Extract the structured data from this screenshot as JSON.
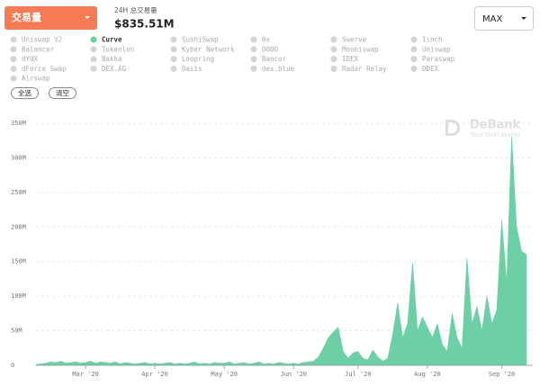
{
  "header": {
    "metric": "交易量",
    "summary_label": "24H 总交易量",
    "summary_value": "$835.51M",
    "range": "MAX"
  },
  "filters": [
    {
      "name": "Uniswap V2",
      "color": "#d4d4d4"
    },
    {
      "name": "Curve",
      "color": "#6ccfa5"
    },
    {
      "name": "SushiSwap",
      "color": "#d4d4d4"
    },
    {
      "name": "0x",
      "color": "#d4d4d4"
    },
    {
      "name": "Swerve",
      "color": "#d4d4d4"
    },
    {
      "name": "1inch",
      "color": "#d4d4d4"
    },
    {
      "name": "Balancer",
      "color": "#d4d4d4"
    },
    {
      "name": "Tokenlon",
      "color": "#d4d4d4"
    },
    {
      "name": "Kyber Network",
      "color": "#d4d4d4"
    },
    {
      "name": "DODO",
      "color": "#d4d4d4"
    },
    {
      "name": "Mooniswap",
      "color": "#d4d4d4"
    },
    {
      "name": "Uniswap",
      "color": "#d4d4d4"
    },
    {
      "name": "dYdX",
      "color": "#d4d4d4"
    },
    {
      "name": "Bakka",
      "color": "#d4d4d4"
    },
    {
      "name": "Loopring",
      "color": "#d4d4d4"
    },
    {
      "name": "Bancor",
      "color": "#d4d4d4"
    },
    {
      "name": "IDEX",
      "color": "#d4d4d4"
    },
    {
      "name": "Paraswap",
      "color": "#d4d4d4"
    },
    {
      "name": "dForce Swap",
      "color": "#d4d4d4"
    },
    {
      "name": "DEX.AG",
      "color": "#d4d4d4"
    },
    {
      "name": "Oasis",
      "color": "#d4d4d4"
    },
    {
      "name": "dex.blue",
      "color": "#d4d4d4"
    },
    {
      "name": "Radar Relay",
      "color": "#d4d4d4"
    },
    {
      "name": "DDEX",
      "color": "#d4d4d4"
    },
    {
      "name": "Airswap",
      "color": "#d4d4d4"
    }
  ],
  "buttons": [
    "全选",
    "清空"
  ],
  "watermark": {
    "brand": "DeBank",
    "tagline": "Your DeFi Wallet"
  },
  "chart_data": {
    "type": "area",
    "color": "#6ccfa5",
    "grid": true,
    "categories": [
      null,
      null,
      null,
      null,
      null,
      null,
      null,
      null,
      null,
      null,
      "Mar '20",
      null,
      null,
      null,
      null,
      null,
      null,
      null,
      null,
      null,
      null,
      null,
      null,
      null,
      "Apr '20",
      null,
      null,
      null,
      null,
      null,
      null,
      null,
      null,
      null,
      null,
      null,
      null,
      null,
      "May '20",
      null,
      null,
      null,
      null,
      null,
      null,
      null,
      null,
      null,
      null,
      null,
      null,
      null,
      "Jun '20",
      null,
      null,
      null,
      null,
      null,
      null,
      null,
      null,
      null,
      null,
      null,
      null,
      "Jul '20",
      null,
      null,
      null,
      null,
      null,
      null,
      null,
      null,
      null,
      null,
      null,
      null,
      null,
      "Aug '20",
      null,
      null,
      null,
      null,
      null,
      null,
      null,
      null,
      null,
      null,
      null,
      null,
      null,
      null,
      "Sep '20",
      null,
      null,
      null,
      null,
      null
    ],
    "values": [
      1,
      2,
      3,
      5,
      4,
      6,
      3,
      4,
      5,
      3,
      4,
      6,
      3,
      5,
      4,
      3,
      5,
      2,
      4,
      3,
      2,
      3,
      4,
      2,
      3,
      2,
      3,
      4,
      2,
      3,
      2,
      3,
      5,
      2,
      3,
      2,
      4,
      3,
      3,
      5,
      2,
      3,
      4,
      2,
      3,
      5,
      2,
      3,
      2,
      4,
      3,
      2,
      3,
      2,
      4,
      5,
      6,
      12,
      25,
      40,
      48,
      55,
      20,
      10,
      18,
      20,
      10,
      8,
      22,
      12,
      6,
      10,
      45,
      90,
      40,
      60,
      148,
      50,
      70,
      55,
      40,
      60,
      30,
      20,
      75,
      40,
      25,
      155,
      60,
      85,
      50,
      100,
      60,
      80,
      210,
      120,
      330,
      200,
      165,
      160
    ],
    "ylim": [
      0,
      350
    ],
    "yticks": [
      0,
      {
        "value": 50,
        "label": "50M"
      },
      {
        "value": 100,
        "label": "100M"
      },
      {
        "value": 150,
        "label": "150M"
      },
      {
        "value": 200,
        "label": "200M"
      },
      {
        "value": 250,
        "label": "250M"
      },
      {
        "value": 300,
        "label": "300M"
      },
      {
        "value": 350,
        "label": "350M"
      }
    ]
  }
}
